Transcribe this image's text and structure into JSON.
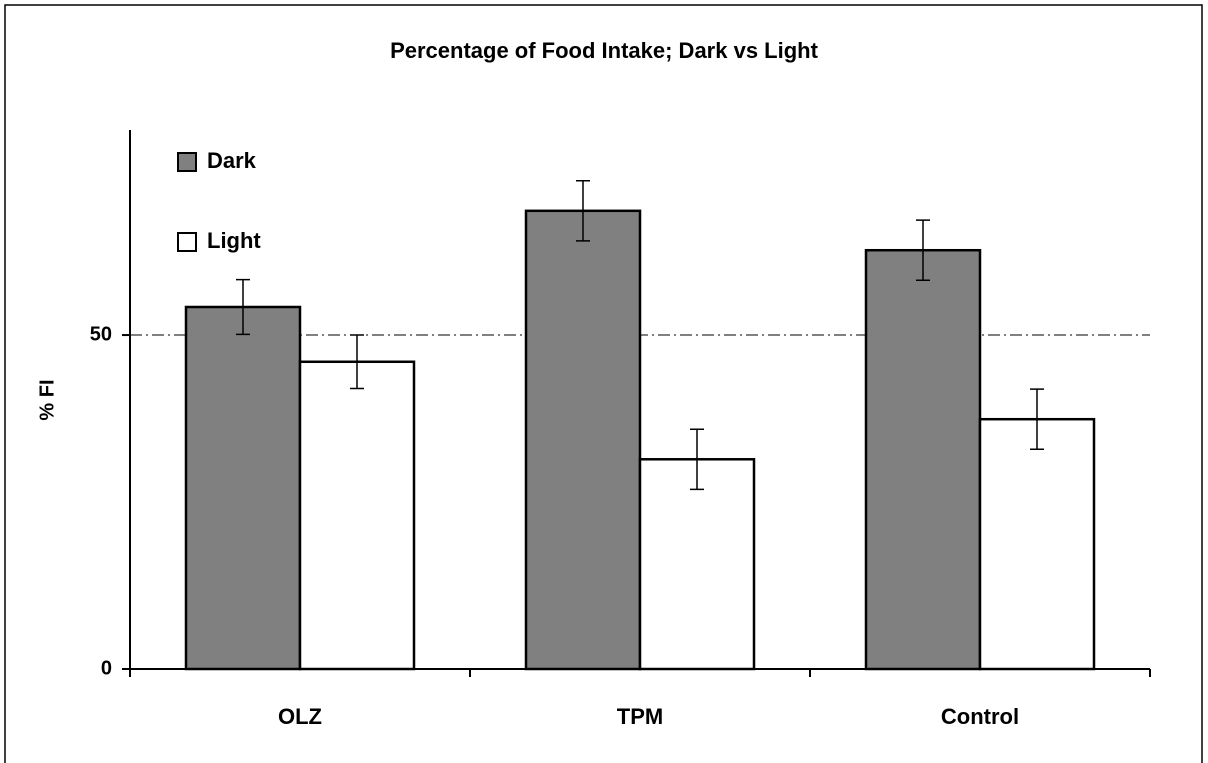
{
  "chart_data": {
    "type": "bar",
    "title": "Percentage of Food Intake; Dark vs Light",
    "y_label": "% FI",
    "categories": [
      "OLZ",
      "TPM",
      "Control"
    ],
    "series": [
      {
        "name": "Dark",
        "color": "#808080",
        "values": [
          54.2,
          68.6,
          62.7
        ],
        "errors": [
          4.1,
          4.5,
          4.5
        ]
      },
      {
        "name": "Light",
        "color": "#ffffff",
        "values": [
          46.0,
          31.4,
          37.4
        ],
        "errors": [
          4.0,
          4.5,
          4.5
        ]
      }
    ],
    "ylim": [
      0,
      80.7
    ],
    "yticks": [
      0,
      50
    ],
    "grid": true,
    "legend": "upper left"
  }
}
